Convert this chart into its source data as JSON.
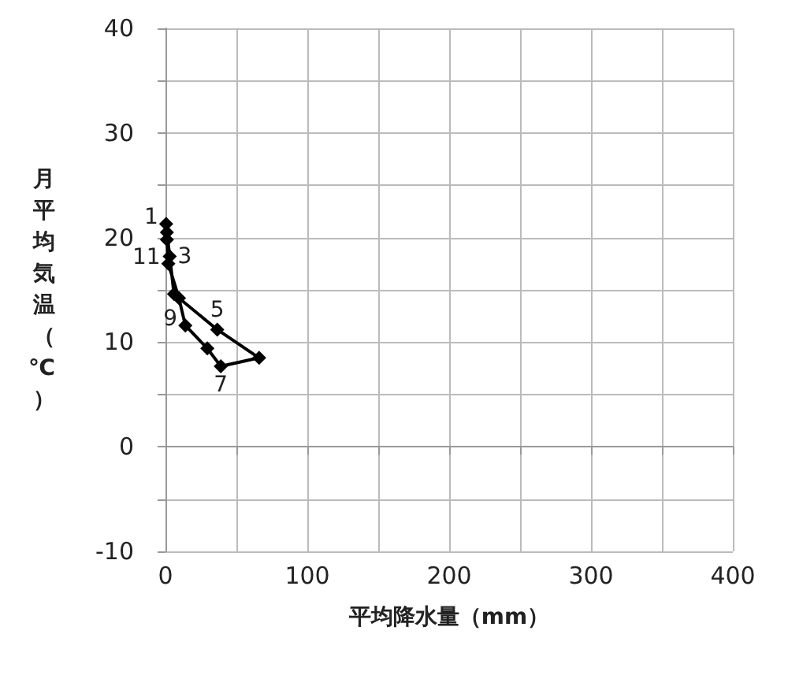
{
  "chart_data": {
    "type": "line",
    "xlabel": "平均降水量（mm）",
    "ylabel": "月平均気温（℃）",
    "series": [
      {
        "color": "#000000",
        "x": [
          0.5,
          1,
          3,
          6,
          36.5,
          66,
          39,
          29.5,
          14,
          9.5,
          2,
          1
        ],
        "values": [
          21.3,
          20.5,
          18.2,
          14.6,
          11.2,
          8.5,
          7.7,
          9.4,
          11.6,
          14.2,
          17.5,
          19.8
        ]
      }
    ],
    "xlim": [
      0,
      400
    ],
    "xticks": [
      0,
      {
        "value": 50,
        "label": null
      },
      100,
      {
        "value": 150,
        "label": null
      },
      200,
      {
        "value": 250,
        "label": null
      },
      300,
      {
        "value": 350,
        "label": null
      },
      400
    ],
    "ylim": [
      -10,
      40
    ],
    "yticks": [
      -10,
      {
        "value": -5,
        "label": null
      },
      0,
      {
        "value": 5,
        "label": null
      },
      10,
      {
        "value": 15,
        "label": null
      },
      20,
      {
        "value": 25,
        "label": null
      },
      30,
      {
        "value": 35,
        "label": null
      },
      40
    ],
    "annotations": [
      {
        "text": "1",
        "x": 0.5,
        "y": 21.3
      },
      {
        "text": "3",
        "x": 3,
        "y": 18.2
      },
      {
        "text": "5",
        "x": 36.5,
        "y": 11.2
      },
      {
        "text": "7",
        "x": 39,
        "y": 7.7
      },
      {
        "text": "9",
        "x": 14,
        "y": 11.6
      },
      {
        "text": "11",
        "x": 2,
        "y": 17.5
      }
    ],
    "grid": true,
    "marker": "diamond",
    "line_style": "solid"
  }
}
